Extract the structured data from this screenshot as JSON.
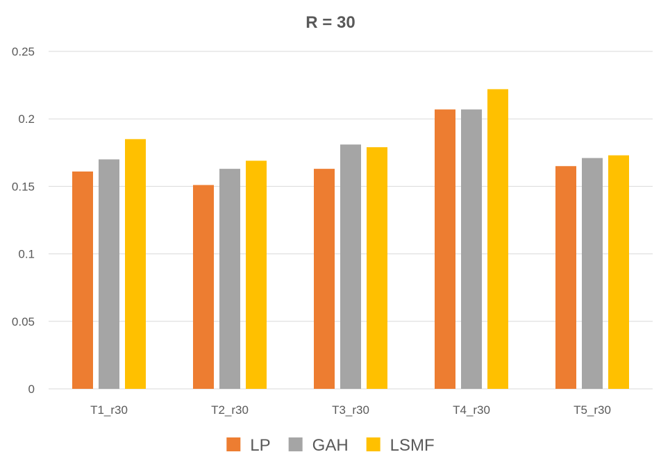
{
  "chart_data": {
    "type": "bar",
    "title": "R = 30",
    "categories": [
      "T1_r30",
      "T2_r30",
      "T3_r30",
      "T4_r30",
      "T5_r30"
    ],
    "series": [
      {
        "name": "LP",
        "color": "#ED7D31",
        "values": [
          0.161,
          0.151,
          0.163,
          0.207,
          0.165
        ]
      },
      {
        "name": "GAH",
        "color": "#A5A5A5",
        "values": [
          0.17,
          0.163,
          0.181,
          0.207,
          0.171
        ]
      },
      {
        "name": "LSMF",
        "color": "#FFC000",
        "values": [
          0.185,
          0.169,
          0.179,
          0.222,
          0.173
        ]
      }
    ],
    "ylim": [
      0,
      0.25
    ],
    "yticks": [
      "0",
      "0.05",
      "0.1",
      "0.15",
      "0.2",
      "0.25"
    ],
    "xlabel": "",
    "ylabel": "",
    "grid": true,
    "legend_position": "bottom"
  }
}
